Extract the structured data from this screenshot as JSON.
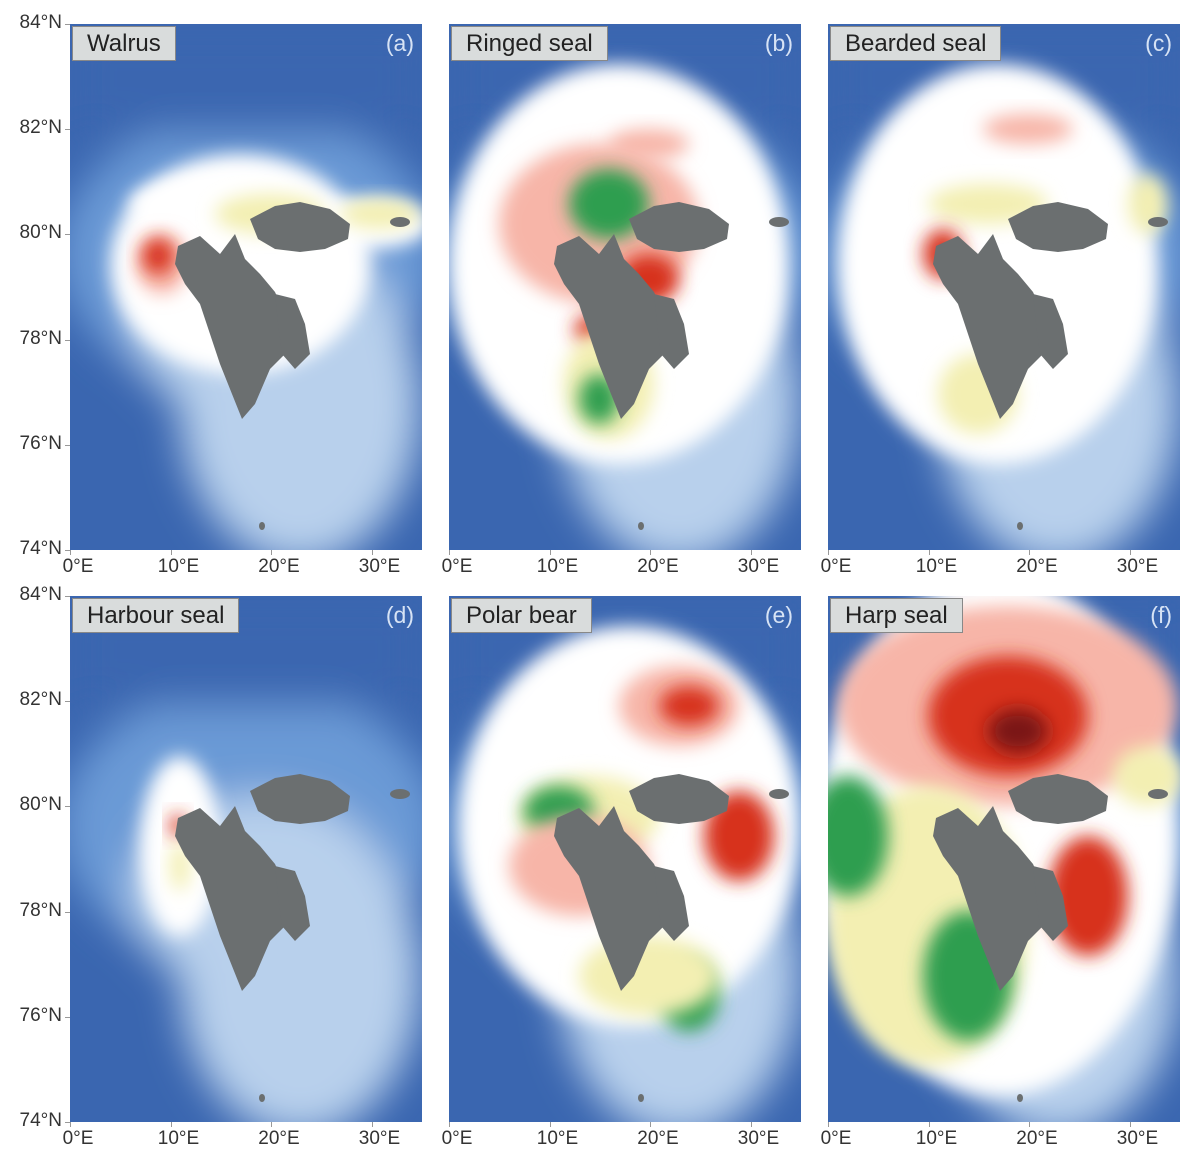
{
  "panels": [
    {
      "title": "Walrus",
      "letter": "(a)"
    },
    {
      "title": "Ringed seal",
      "letter": "(b)"
    },
    {
      "title": "Bearded seal",
      "letter": "(c)"
    },
    {
      "title": "Harbour seal",
      "letter": "(d)"
    },
    {
      "title": "Polar bear",
      "letter": "(e)"
    },
    {
      "title": "Harp seal",
      "letter": "(f)"
    }
  ],
  "axes": {
    "lat_labels": [
      "84°N",
      "82°N",
      "80°N",
      "78°N",
      "76°N",
      "74°N"
    ],
    "lon_labels": [
      "0°E",
      "10°E",
      "20°E",
      "30°E"
    ],
    "lat_range": [
      74,
      84
    ],
    "lon_range": [
      0,
      35
    ]
  },
  "colors": {
    "deep_ocean": "#3a66b0",
    "shelf": "#6b9ad6",
    "shallow": "#b8d0ec",
    "land": "#6b6f70",
    "high_density": "#d7301f",
    "medium_density": "#f7b5a8",
    "low_density": "#f3efb2",
    "green_density": "#2e9e4f"
  }
}
